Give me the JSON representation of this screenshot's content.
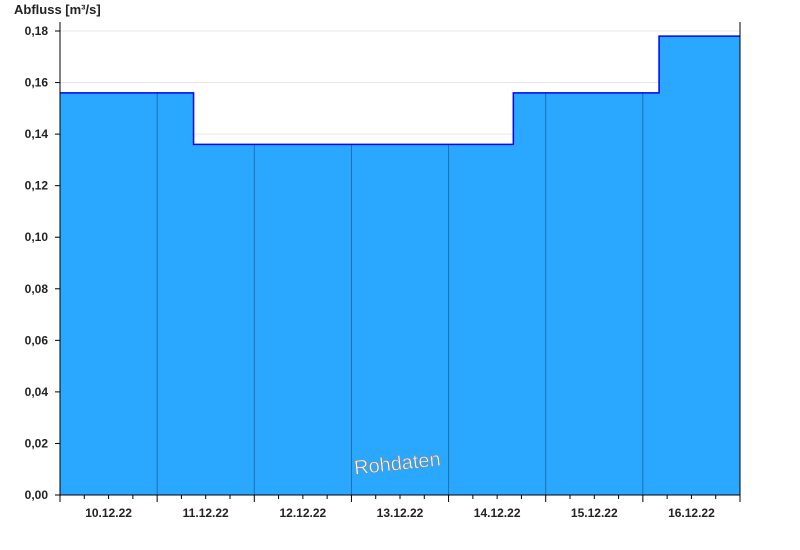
{
  "chart_data": {
    "type": "area",
    "ylabel": "Abfluss [m³/s]",
    "ylim": [
      0,
      0.18
    ],
    "yticks": [
      "0,00",
      "0,02",
      "0,04",
      "0,06",
      "0,08",
      "0,10",
      "0,12",
      "0,14",
      "0,16",
      "0,18"
    ],
    "xlim": [
      "10.12.22 00:00",
      "17.12.22 00:00"
    ],
    "xticks": [
      "10.12.22",
      "11.12.22",
      "12.12.22",
      "13.12.22",
      "14.12.22",
      "15.12.22",
      "16.12.22"
    ],
    "grid": true,
    "step": true,
    "series": [
      {
        "x_hours_from_start": [
          0,
          33,
          112,
          148,
          168
        ],
        "x": [
          "10.12.22 00:00",
          "11.12.22 09:00",
          "14.12.22 16:00",
          "16.12.22 04:00",
          "17.12.22 00:00"
        ],
        "values": [
          0.156,
          0.136,
          0.156,
          0.178,
          0.178
        ]
      }
    ],
    "annotation": "Rohdaten",
    "fill_color": "#2aa8ff",
    "line_color": "#0000ff"
  }
}
